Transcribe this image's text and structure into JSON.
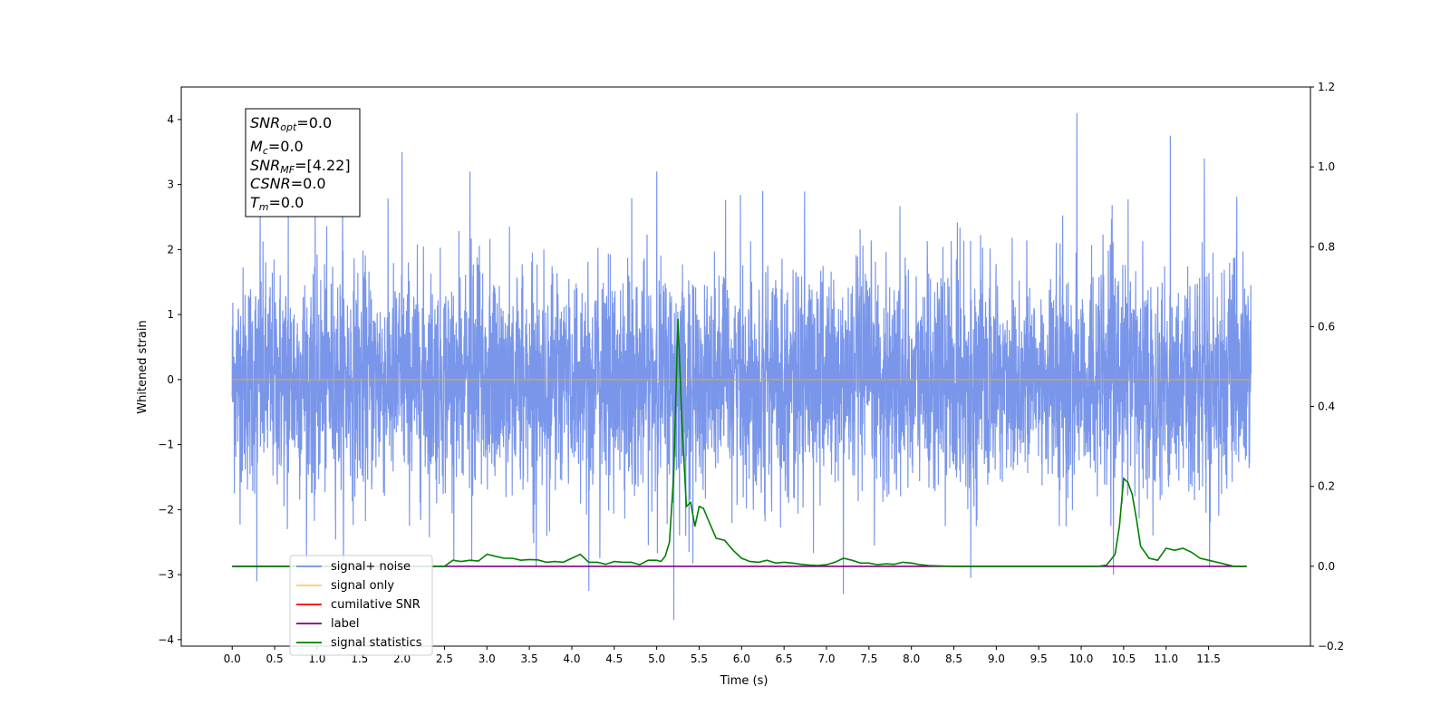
{
  "chart_data": {
    "type": "line",
    "xlabel": "Time (s)",
    "ylabel": "Whitened strain",
    "xlim": [
      -0.6,
      12.7
    ],
    "xticks": [
      0.0,
      0.5,
      1.0,
      1.5,
      2.0,
      2.5,
      3.0,
      3.5,
      4.0,
      4.5,
      5.0,
      5.5,
      6.0,
      6.5,
      7.0,
      7.5,
      8.0,
      8.5,
      9.0,
      9.5,
      10.0,
      10.5,
      11.0,
      11.5
    ],
    "xtick_labels": [
      "0.0",
      "0.5",
      "1.0",
      "1.5",
      "2.0",
      "2.5",
      "3.0",
      "3.5",
      "4.0",
      "4.5",
      "5.0",
      "5.5",
      "6.0",
      "6.5",
      "7.0",
      "7.5",
      "8.0",
      "8.5",
      "9.0",
      "9.5",
      "10.0",
      "10.5",
      "11.0",
      "11.5"
    ],
    "ylim_left": [
      -4.1,
      4.5
    ],
    "yticks_left": [
      4,
      3,
      2,
      1,
      0,
      -1,
      -2,
      -3,
      -4
    ],
    "ytick_labels_left": [
      "4",
      "3",
      "2",
      "1",
      "0",
      "−1",
      "−2",
      "−3",
      "−4"
    ],
    "ylim_right": [
      -0.2,
      1.2
    ],
    "yticks_right": [
      1.2,
      1.0,
      0.8,
      0.6,
      0.4,
      0.2,
      0.0,
      -0.2
    ],
    "ytick_labels_right": [
      "1.2",
      "1.0",
      "0.8",
      "0.6",
      "0.4",
      "0.2",
      "0.0",
      "−0.2"
    ],
    "grid": false,
    "legend_position": "lower-left",
    "annotation": [
      {
        "base": "SNR",
        "sub": "opt",
        "rest": "=0.0"
      },
      {
        "base": "M",
        "sub": "c",
        "rest": "=0.0"
      },
      {
        "base": "SNR",
        "sub": "MF",
        "rest": "=[4.22]"
      },
      {
        "base": "CSNR",
        "sub": "",
        "rest": "=0.0"
      },
      {
        "base": "T",
        "sub": "m",
        "rest": "=0.0"
      }
    ],
    "series": [
      {
        "name": "signal+ noise",
        "color": "#4169e1",
        "axis": "left",
        "note_values": "white noise between about -3.7 and 4.1 over 0.0–12.0 s",
        "spikes": [
          [
            0.29,
            -3.1
          ],
          [
            0.33,
            2.9
          ],
          [
            0.65,
            -2.3
          ],
          [
            0.66,
            2.6
          ],
          [
            1.3,
            2.7
          ],
          [
            2.0,
            3.5
          ],
          [
            2.8,
            3.2
          ],
          [
            2.82,
            -2.8
          ],
          [
            4.2,
            -3.25
          ],
          [
            5.0,
            3.2
          ],
          [
            5.2,
            -3.7
          ],
          [
            6.25,
            2.9
          ],
          [
            7.2,
            -3.3
          ],
          [
            8.7,
            -3.05
          ],
          [
            9.95,
            4.1
          ],
          [
            10.38,
            -3.0
          ],
          [
            11.05,
            3.75
          ],
          [
            11.45,
            3.4
          ]
        ]
      },
      {
        "name": "signal only",
        "color": "#ffa500",
        "axis": "left",
        "x": [
          0.0,
          12.0
        ],
        "y": [
          0.0,
          0.0
        ]
      },
      {
        "name": "cumilative SNR",
        "color": "#ff0000",
        "axis": "right",
        "x": [],
        "y": []
      },
      {
        "name": "label",
        "color": "#800080",
        "axis": "right",
        "x": [
          0.0,
          11.95
        ],
        "y": [
          0.0,
          0.0
        ]
      },
      {
        "name": "signal statistics",
        "color": "#008000",
        "axis": "right",
        "x": [
          0.0,
          0.5,
          1.0,
          1.5,
          2.0,
          2.5,
          2.6,
          2.7,
          2.8,
          2.9,
          3.0,
          3.1,
          3.2,
          3.3,
          3.4,
          3.5,
          3.6,
          3.7,
          3.8,
          3.9,
          4.0,
          4.1,
          4.2,
          4.3,
          4.4,
          4.5,
          4.6,
          4.7,
          4.8,
          4.9,
          5.0,
          5.05,
          5.1,
          5.15,
          5.2,
          5.25,
          5.3,
          5.35,
          5.4,
          5.45,
          5.5,
          5.55,
          5.6,
          5.7,
          5.8,
          5.9,
          6.0,
          6.1,
          6.2,
          6.3,
          6.4,
          6.5,
          6.6,
          6.7,
          6.8,
          6.9,
          7.0,
          7.1,
          7.2,
          7.3,
          7.4,
          7.5,
          7.6,
          7.7,
          7.8,
          7.9,
          8.0,
          8.1,
          8.2,
          8.3,
          8.5,
          9.0,
          9.5,
          10.0,
          10.2,
          10.3,
          10.4,
          10.45,
          10.5,
          10.55,
          10.6,
          10.65,
          10.7,
          10.8,
          10.9,
          11.0,
          11.1,
          11.2,
          11.3,
          11.4,
          11.5,
          11.6,
          11.7,
          11.8,
          11.95
        ],
        "y": [
          0.0,
          0.0,
          0.0,
          0.0,
          0.0,
          0.0,
          0.015,
          0.012,
          0.015,
          0.013,
          0.03,
          0.025,
          0.02,
          0.02,
          0.015,
          0.017,
          0.016,
          0.01,
          0.012,
          0.01,
          0.02,
          0.03,
          0.01,
          0.01,
          0.005,
          0.012,
          0.01,
          0.01,
          0.004,
          0.015,
          0.015,
          0.012,
          0.025,
          0.06,
          0.23,
          0.62,
          0.35,
          0.15,
          0.16,
          0.1,
          0.15,
          0.145,
          0.12,
          0.07,
          0.065,
          0.04,
          0.02,
          0.012,
          0.01,
          0.015,
          0.008,
          0.01,
          0.008,
          0.005,
          0.003,
          0.002,
          0.004,
          0.01,
          0.02,
          0.015,
          0.008,
          0.008,
          0.004,
          0.006,
          0.005,
          0.01,
          0.008,
          0.004,
          0.002,
          0.001,
          0.0,
          0.0,
          0.0,
          0.0,
          0.0,
          0.003,
          0.03,
          0.1,
          0.22,
          0.21,
          0.18,
          0.12,
          0.05,
          0.02,
          0.015,
          0.045,
          0.04,
          0.045,
          0.035,
          0.02,
          0.015,
          0.01,
          0.005,
          0.0,
          0.0
        ]
      }
    ]
  }
}
